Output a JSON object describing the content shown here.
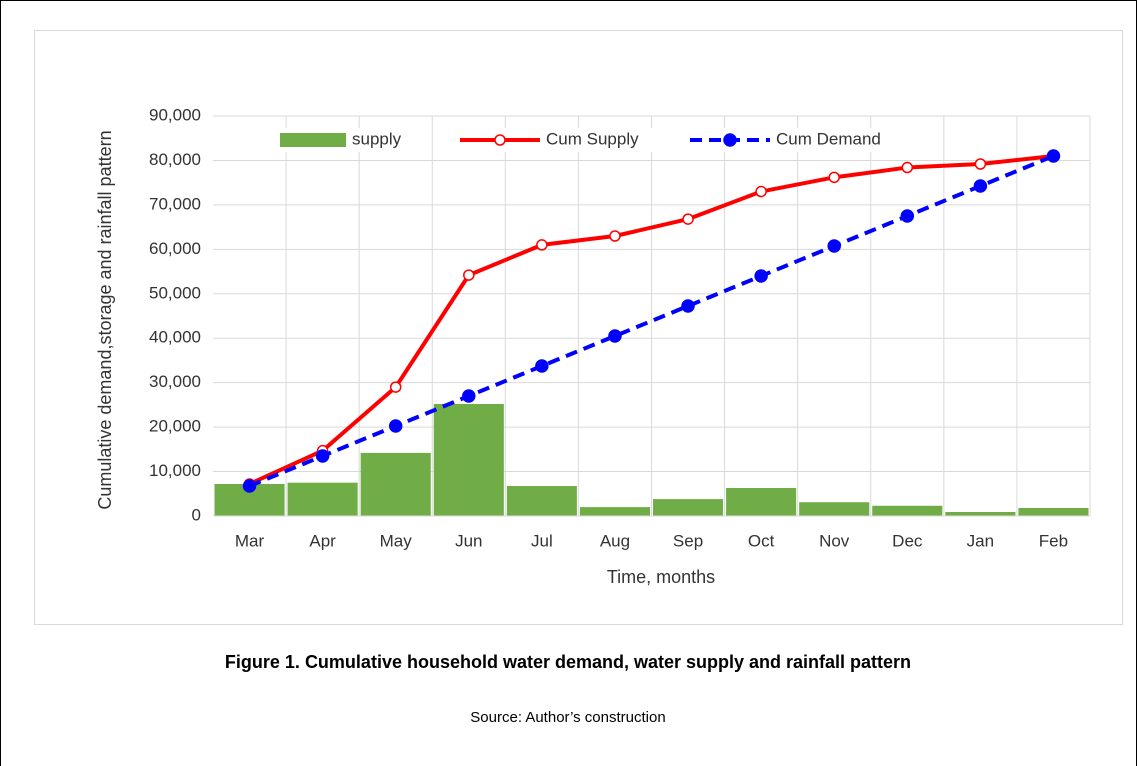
{
  "chart_data": {
    "type": "combo",
    "categories": [
      "Mar",
      "Apr",
      "May",
      "Jun",
      "Jul",
      "Aug",
      "Sep",
      "Oct",
      "Nov",
      "Dec",
      "Jan",
      "Feb"
    ],
    "series": [
      {
        "name": "supply",
        "type": "bar",
        "color": "#70ad47",
        "values": [
          7200,
          7500,
          14200,
          25200,
          6750,
          2000,
          3800,
          6300,
          3100,
          2300,
          900,
          1800
        ]
      },
      {
        "name": "Cum Supply",
        "type": "line",
        "color": "#ff0000",
        "dashed": false,
        "marker": "open",
        "values": [
          7200,
          14700,
          29000,
          54200,
          61000,
          63000,
          66800,
          73000,
          76200,
          78400,
          79200,
          81000
        ]
      },
      {
        "name": "Cum Demand",
        "type": "line",
        "color": "#0000ff",
        "dashed": true,
        "marker": "filled",
        "values": [
          6750,
          13500,
          20250,
          27000,
          33750,
          40500,
          47250,
          54000,
          60750,
          67500,
          74250,
          81000
        ]
      }
    ],
    "ylim": [
      0,
      90000
    ],
    "yticks": [
      0,
      {
        "value": 10000,
        "label": "10,000"
      },
      {
        "value": 20000,
        "label": "20,000"
      },
      {
        "value": 30000,
        "label": "30,000"
      },
      {
        "value": 40000,
        "label": "40,000"
      },
      {
        "value": 50000,
        "label": "50,000"
      },
      {
        "value": 60000,
        "label": "60,000"
      },
      {
        "value": 70000,
        "label": "70,000"
      },
      {
        "value": 80000,
        "label": "80,000"
      },
      {
        "value": 90000,
        "label": "90,000"
      }
    ],
    "grid": true,
    "legend": "top",
    "x_label": "Time, months",
    "y_label": "Cumulative demand,storage and rainfall pattern",
    "caption": "Figure 1. Cumulative household water demand, water supply and rainfall pattern",
    "source": "Source: Author’s construction"
  }
}
